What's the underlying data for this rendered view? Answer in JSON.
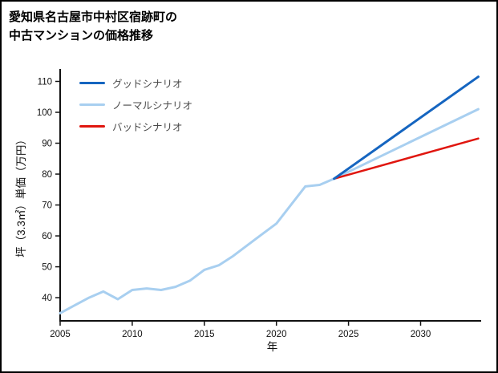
{
  "title": {
    "line1": "愛知県名古屋市中村区宿跡町の",
    "line2": "中古マンションの価格推移"
  },
  "chart_data": {
    "type": "line",
    "title": "愛知県名古屋市中村区宿跡町の中古マンションの価格推移",
    "xlabel": "年",
    "ylabel": "坪（3.3㎡）単価（万円）",
    "xlim": [
      2005,
      2034.2
    ],
    "ylim": [
      32.5,
      113.5
    ],
    "x_ticks": [
      2005,
      2010,
      2015,
      2020,
      2025,
      2030
    ],
    "y_ticks": [
      40,
      50,
      60,
      70,
      80,
      90,
      100,
      110
    ],
    "grid": false,
    "legend_position": "upper left",
    "legend_entries": [
      "グッドシナリオ",
      "ノーマルシナリオ",
      "バッドシナリオ"
    ],
    "series": [
      {
        "name": "グッドシナリオ",
        "role": "forecast",
        "color": "#1565c0",
        "line_width": 3,
        "in_legend": true,
        "x": [
          2024,
          2034
        ],
        "values": [
          78.5,
          111.5
        ]
      },
      {
        "name": "ノーマルシナリオ",
        "role": "forecast",
        "color": "#a8cff0",
        "line_width": 3,
        "in_legend": true,
        "x": [
          2024,
          2034
        ],
        "values": [
          78.5,
          101
        ]
      },
      {
        "name": "バッドシナリオ",
        "role": "forecast",
        "color": "#e0160f",
        "line_width": 2.5,
        "in_legend": true,
        "x": [
          2024,
          2034
        ],
        "values": [
          78.5,
          91.5
        ]
      },
      {
        "name": "",
        "role": "history",
        "color": "#a8cff0",
        "line_width": 3,
        "in_legend": false,
        "x": [
          2005,
          2006,
          2007,
          2008,
          2009,
          2010,
          2011,
          2012,
          2013,
          2014,
          2015,
          2016,
          2017,
          2018,
          2019,
          2020,
          2021,
          2022,
          2023,
          2024
        ],
        "values": [
          35,
          37.5,
          40,
          42,
          39.5,
          42.5,
          43,
          42.5,
          43.5,
          45.5,
          49,
          50.5,
          53.5,
          57,
          60.5,
          64,
          70,
          76,
          76.5,
          78.5
        ]
      }
    ]
  }
}
